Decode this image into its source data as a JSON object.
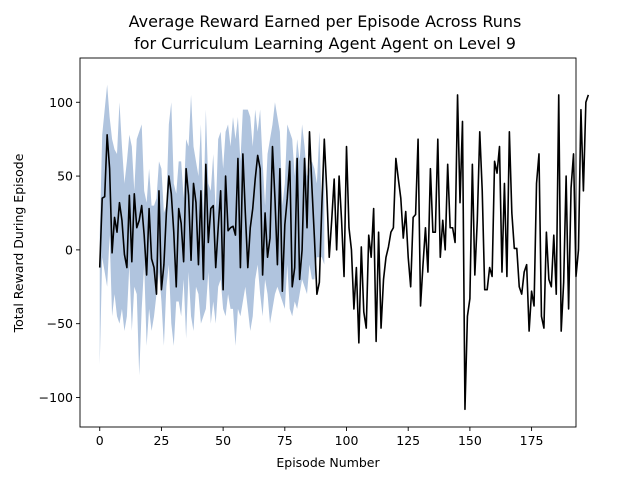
{
  "chart_data": {
    "type": "line",
    "title": "Average Reward Earned per Episode Across Runs\nfor Curriculum Learning Agent Agent on Level 9",
    "xlabel": "Episode Number",
    "ylabel": "Total Reward During Episode",
    "xlim": [
      -8,
      193
    ],
    "ylim": [
      -120,
      130
    ],
    "xticks": [
      0,
      25,
      50,
      75,
      100,
      125,
      150,
      175
    ],
    "yticks": [
      -100,
      -50,
      0,
      50,
      100
    ],
    "grid": false,
    "colors": {
      "mean": "#000000",
      "band": "#b0c4de",
      "axes": "#000000"
    },
    "series": [
      {
        "values": [
          -12,
          35,
          36,
          78,
          55,
          -2,
          22,
          12,
          32,
          20,
          -3,
          -12,
          37,
          -8,
          38,
          15,
          20,
          30,
          10,
          -17,
          28,
          -6,
          -12,
          -30,
          40,
          -27,
          -10,
          25,
          50,
          38,
          12,
          -25,
          28,
          18,
          -8,
          55,
          37,
          -7,
          45,
          32,
          -10,
          40,
          -20,
          58,
          5,
          28,
          30,
          -12,
          15,
          40,
          -27,
          50,
          13,
          15,
          16,
          10,
          62,
          -12,
          65,
          25,
          -12,
          15,
          28,
          48,
          64,
          55,
          -17,
          25,
          -5,
          8,
          70,
          35,
          -10,
          55,
          -28,
          17,
          35,
          60,
          -25,
          -12,
          62,
          -20,
          0,
          62,
          15,
          80,
          42,
          8,
          -30,
          -22,
          30,
          75,
          40,
          -5,
          20,
          48,
          0,
          50,
          20,
          -18,
          70,
          15,
          0,
          -40,
          -12,
          -63,
          2,
          -42,
          -53,
          10,
          -5,
          28,
          -62,
          12,
          -53,
          -20,
          -5,
          2,
          12,
          15,
          62,
          48,
          35,
          8,
          26,
          -5,
          -25,
          22,
          24,
          75,
          -38,
          -10,
          15,
          -15,
          55,
          12,
          12,
          75,
          -5,
          20,
          0,
          58,
          15,
          15,
          5,
          105,
          32,
          87,
          -108,
          -45,
          -33,
          58,
          -17,
          20,
          80,
          40,
          -27,
          -27,
          -12,
          -18,
          60,
          52,
          70,
          -15,
          45,
          -18,
          80,
          25,
          1,
          1,
          -25,
          -30,
          -15,
          -10,
          -55,
          -28,
          -38,
          45,
          65,
          -45,
          -53,
          12,
          -20,
          -25,
          10,
          -30,
          105,
          -55,
          -22,
          50,
          -40,
          42,
          65,
          -18,
          0,
          95,
          40,
          100,
          105
        ],
        "band_lower": [
          -78,
          -5,
          -15,
          -25,
          10,
          -45,
          -30,
          -45,
          -50,
          -40,
          -55,
          -45,
          -10,
          -55,
          -25,
          -30,
          -85,
          -40,
          -10,
          -65,
          -40,
          -55,
          -45,
          -30,
          -15,
          -35,
          -65,
          -25,
          -10,
          -50,
          -65,
          -35,
          -35,
          -45,
          -20,
          -60,
          -15,
          -45,
          -55,
          -25,
          -30,
          -50,
          -45,
          -40,
          -15,
          -50,
          -35,
          -50,
          -25,
          -20,
          -40,
          -45,
          -30,
          -40,
          -40,
          -65,
          -40,
          -45,
          -35,
          -25,
          -40,
          -55,
          -45,
          -20,
          -10,
          -30,
          -45,
          -20,
          -30,
          -50,
          -40,
          -30,
          -25,
          -30,
          -35,
          -40,
          -10,
          -40,
          -45,
          -35,
          -40,
          -30,
          -20,
          -25,
          -30,
          -10,
          -20,
          -20,
          -5,
          -5,
          -5,
          -10
        ],
        "band_upper": [
          10,
          78,
          95,
          112,
          90,
          75,
          68,
          65,
          100,
          70,
          45,
          60,
          78,
          70,
          40,
          75,
          80,
          85,
          40,
          32,
          55,
          30,
          30,
          35,
          60,
          55,
          25,
          30,
          85,
          100,
          45,
          38,
          60,
          60,
          35,
          75,
          70,
          105,
          70,
          60,
          50,
          85,
          25,
          95,
          45,
          40,
          65,
          25,
          75,
          80,
          55,
          80,
          85,
          70,
          90,
          75,
          90,
          60,
          95,
          95,
          95,
          90,
          70,
          95,
          80,
          95,
          60,
          30,
          65,
          75,
          85,
          100,
          90,
          80,
          30,
          45,
          85,
          80,
          75,
          50,
          75,
          60,
          85,
          70,
          50,
          55,
          60,
          55,
          45,
          80,
          25,
          70
        ]
      }
    ]
  }
}
